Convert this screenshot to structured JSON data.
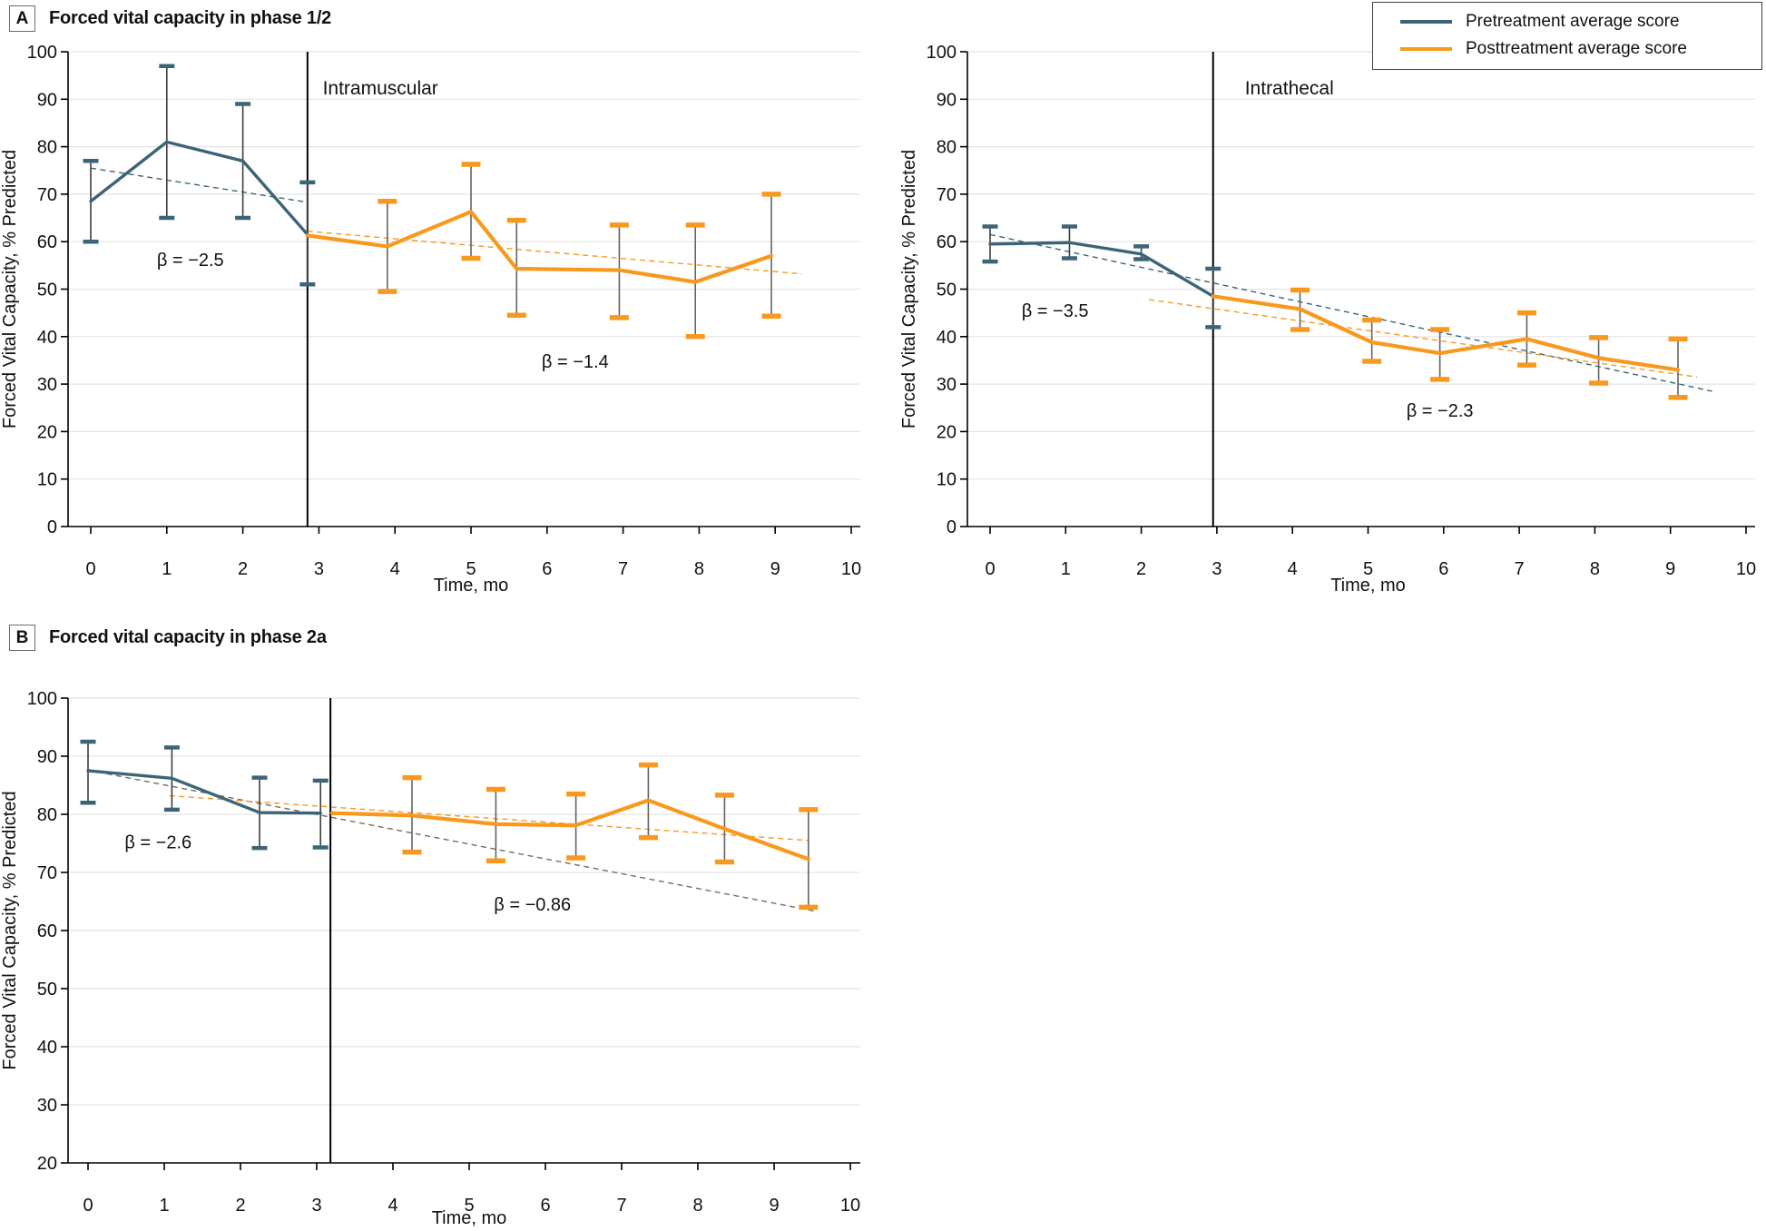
{
  "figure": {
    "panels": {
      "a": {
        "label": "A",
        "title": "Forced vital capacity in phase 1/2"
      },
      "b": {
        "label": "B",
        "title": "Forced vital capacity in phase 2a"
      }
    },
    "legend": {
      "items": [
        {
          "label": "Pretreatment average score",
          "color": "#3B6577"
        },
        {
          "label": "Posttreatment average score",
          "color": "#F8981D"
        }
      ]
    }
  },
  "colors": {
    "pretreatment": "#3B6577",
    "posttreatment": "#F8981D",
    "stem_pre": "#3d3d3d",
    "stem_post": "#636363",
    "grid": "#e3e3e3",
    "axis": "#000000",
    "divider": "#000000",
    "trend_b_pre": "#7b6a5f"
  },
  "chart_data": [
    {
      "id": "intramuscular",
      "type": "line",
      "region_label": {
        "text": "Intramuscular",
        "x": 3.05,
        "y": 91
      },
      "xlabel": "Time, mo",
      "ylabel": "Forced Vital Capacity, % Predicted",
      "xlim": [
        0,
        10
      ],
      "ylim": [
        0,
        100
      ],
      "xticks": [
        0,
        1,
        2,
        3,
        4,
        5,
        6,
        7,
        8,
        9,
        10
      ],
      "yticks": [
        0,
        10,
        20,
        30,
        40,
        50,
        60,
        70,
        80,
        90,
        100
      ],
      "divider_x": 2.85,
      "annotations": [
        {
          "text": "β = −2.5",
          "x": 1.31,
          "y": 56.2
        },
        {
          "text": "β = −1.4",
          "x": 6.37,
          "y": 34.8
        }
      ],
      "trends": [
        {
          "series": "pre",
          "beta": -2.5,
          "x1": 0,
          "y1": 75.5,
          "x2": 2.85,
          "y2": 68.3
        },
        {
          "series": "post",
          "beta": -1.4,
          "x1": 2.85,
          "y1": 62.2,
          "x2": 9.35,
          "y2": 53.2
        }
      ],
      "series": [
        {
          "name": "Pretreatment average score",
          "role": "pre",
          "points": [
            {
              "x": 0,
              "y": 68.5,
              "lo": 60,
              "hi": 77
            },
            {
              "x": 1,
              "y": 81,
              "lo": 65,
              "hi": 97
            },
            {
              "x": 2,
              "y": 77,
              "lo": 65,
              "hi": 89
            },
            {
              "x": 2.85,
              "y": 61.5,
              "lo": 51,
              "hi": 72.5
            }
          ]
        },
        {
          "name": "Posttreatment average score",
          "role": "post",
          "points": [
            {
              "x": 2.85,
              "y": 61.3,
              "lo": null,
              "hi": null
            },
            {
              "x": 3.9,
              "y": 59,
              "lo": 49.5,
              "hi": 68.5
            },
            {
              "x": 5.0,
              "y": 66.3,
              "lo": 56.5,
              "hi": 76.3
            },
            {
              "x": 5.6,
              "y": 54.3,
              "lo": 44.5,
              "hi": 64.5
            },
            {
              "x": 6.95,
              "y": 54,
              "lo": 44,
              "hi": 63.5
            },
            {
              "x": 7.95,
              "y": 51.5,
              "lo": 40,
              "hi": 63.5
            },
            {
              "x": 8.95,
              "y": 57,
              "lo": 44.3,
              "hi": 70
            }
          ]
        }
      ]
    },
    {
      "id": "intrathecal",
      "type": "line",
      "region_label": {
        "text": "Intrathecal",
        "x": 3.37,
        "y": 91
      },
      "xlabel": "Time, mo",
      "ylabel": "Forced Vital Capacity, % Predicted",
      "xlim": [
        0,
        10
      ],
      "ylim": [
        0,
        100
      ],
      "xticks": [
        0,
        1,
        2,
        3,
        4,
        5,
        6,
        7,
        8,
        9,
        10
      ],
      "yticks": [
        0,
        10,
        20,
        30,
        40,
        50,
        60,
        70,
        80,
        90,
        100
      ],
      "divider_x": 2.95,
      "annotations": [
        {
          "text": "β = −3.5",
          "x": 0.86,
          "y": 45.5
        },
        {
          "text": "β = −2.3",
          "x": 5.95,
          "y": 24.5
        }
      ],
      "trends": [
        {
          "series": "pre",
          "beta": -3.5,
          "x1": 0,
          "y1": 61.5,
          "x2": 9.55,
          "y2": 28.5
        },
        {
          "series": "post",
          "beta": -2.3,
          "x1": 2.1,
          "y1": 47.8,
          "x2": 9.35,
          "y2": 31.5
        }
      ],
      "series": [
        {
          "name": "Pretreatment average score",
          "role": "pre",
          "points": [
            {
              "x": 0,
              "y": 59.5,
              "lo": 55.8,
              "hi": 63.2
            },
            {
              "x": 1.05,
              "y": 59.8,
              "lo": 56.5,
              "hi": 63.2
            },
            {
              "x": 2.0,
              "y": 57.4,
              "lo": 56.3,
              "hi": 59
            },
            {
              "x": 2.95,
              "y": 48.5,
              "lo": 42,
              "hi": 54.3
            }
          ]
        },
        {
          "name": "Posttreatment average score",
          "role": "post",
          "points": [
            {
              "x": 2.95,
              "y": 48.5,
              "lo": null,
              "hi": null
            },
            {
              "x": 4.1,
              "y": 45.8,
              "lo": 41.5,
              "hi": 49.8
            },
            {
              "x": 5.05,
              "y": 38.8,
              "lo": 34.8,
              "hi": 43.5
            },
            {
              "x": 5.95,
              "y": 36.5,
              "lo": 31,
              "hi": 41.5
            },
            {
              "x": 7.1,
              "y": 39.5,
              "lo": 34,
              "hi": 45
            },
            {
              "x": 8.05,
              "y": 35.5,
              "lo": 30.2,
              "hi": 39.8
            },
            {
              "x": 9.1,
              "y": 33,
              "lo": 27.2,
              "hi": 39.5
            }
          ]
        }
      ]
    },
    {
      "id": "phase-2a",
      "type": "line",
      "region_label": {
        "text": "",
        "x": 0,
        "y": 0
      },
      "xlabel": "Time, mo",
      "ylabel": "Forced Vital Capacity, % Predicted",
      "xlim": [
        0,
        10
      ],
      "ylim": [
        20,
        100
      ],
      "xticks": [
        0,
        1,
        2,
        3,
        4,
        5,
        6,
        7,
        8,
        9,
        10
      ],
      "yticks": [
        20,
        30,
        40,
        50,
        60,
        70,
        80,
        90,
        100
      ],
      "divider_x": 3.18,
      "annotations": [
        {
          "text": "β = −2.6",
          "x": 0.92,
          "y": 75.2
        },
        {
          "text": "β = −0.86",
          "x": 5.83,
          "y": 64.5
        }
      ],
      "trends": [
        {
          "series": "pre",
          "beta": -2.6,
          "x1": 0,
          "y1": 87.6,
          "x2": 9.55,
          "y2": 63.3,
          "color_key": "trend_b_pre"
        },
        {
          "series": "post",
          "beta": -0.86,
          "x1": 1.07,
          "y1": 83.2,
          "x2": 9.45,
          "y2": 75.5
        }
      ],
      "series": [
        {
          "name": "Pretreatment average score",
          "role": "pre",
          "points": [
            {
              "x": 0,
              "y": 87.5,
              "lo": 82,
              "hi": 92.5
            },
            {
              "x": 1.1,
              "y": 86.2,
              "lo": 80.8,
              "hi": 91.5
            },
            {
              "x": 2.25,
              "y": 80.3,
              "lo": 74.2,
              "hi": 86.3
            },
            {
              "x": 3.05,
              "y": 80.2,
              "lo": 74.3,
              "hi": 85.8
            }
          ]
        },
        {
          "name": "Posttreatment average score",
          "role": "post",
          "points": [
            {
              "x": 3.2,
              "y": 80.2,
              "lo": null,
              "hi": null
            },
            {
              "x": 4.25,
              "y": 79.8,
              "lo": 73.5,
              "hi": 86.3
            },
            {
              "x": 5.35,
              "y": 78.3,
              "lo": 72,
              "hi": 84.3
            },
            {
              "x": 6.4,
              "y": 78.1,
              "lo": 72.5,
              "hi": 83.5
            },
            {
              "x": 7.35,
              "y": 82.4,
              "lo": 76,
              "hi": 88.5
            },
            {
              "x": 8.35,
              "y": 77.5,
              "lo": 71.8,
              "hi": 83.3
            },
            {
              "x": 9.45,
              "y": 72.3,
              "lo": 64,
              "hi": 80.8
            }
          ]
        }
      ]
    }
  ]
}
